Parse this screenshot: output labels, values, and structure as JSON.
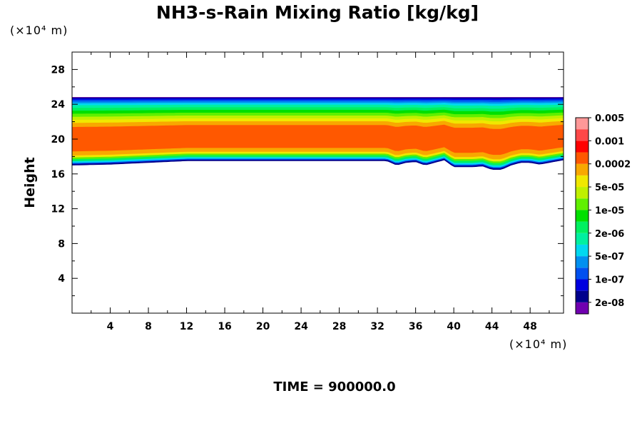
{
  "chart_data": {
    "type": "heatmap",
    "title": "NH3-s-Rain Mixing Ratio [kg/kg]",
    "xlabel": "",
    "ylabel": "Height",
    "x_unit": "(×10⁴ m)",
    "y_unit": "(×10⁴ m)",
    "xlim": [
      0,
      51.5
    ],
    "ylim": [
      0,
      30
    ],
    "x_ticks": [
      4,
      8,
      12,
      16,
      20,
      24,
      28,
      32,
      36,
      40,
      44,
      48
    ],
    "y_ticks": [
      4,
      8,
      12,
      16,
      20,
      24,
      28
    ],
    "footer": "TIME = 900000.0",
    "colorbar": {
      "colors": [
        "#7000b0",
        "#00008c",
        "#0000e0",
        "#0050f0",
        "#0090f0",
        "#00d8f0",
        "#00f0a0",
        "#00f060",
        "#00e000",
        "#60f000",
        "#c0f000",
        "#f0e800",
        "#f8a800",
        "#ff5800",
        "#ff0000",
        "#ff4848",
        "#ff9898"
      ],
      "labels": [
        "2e-08",
        "1e-07",
        "5e-07",
        "2e-06",
        "1e-05",
        "5e-05",
        "0.0002",
        "0.001",
        "0.005"
      ]
    },
    "layers": {
      "top_height": 24.8,
      "base_left_height": 17.4,
      "base_profile_x": [
        0,
        4,
        8,
        12,
        16,
        20,
        24,
        28,
        32,
        33,
        34,
        35,
        36,
        37,
        38,
        39,
        40,
        41,
        42,
        43,
        44,
        45,
        46,
        47,
        48,
        49,
        50,
        51.5
      ],
      "base_profile_y": [
        17.0,
        17.1,
        17.3,
        17.5,
        17.5,
        17.5,
        17.5,
        17.5,
        17.5,
        17.5,
        17.0,
        17.3,
        17.4,
        17.0,
        17.3,
        17.6,
        16.8,
        16.8,
        16.8,
        16.9,
        16.5,
        16.5,
        17.0,
        17.3,
        17.3,
        17.1,
        17.3,
        17.6
      ]
    }
  }
}
